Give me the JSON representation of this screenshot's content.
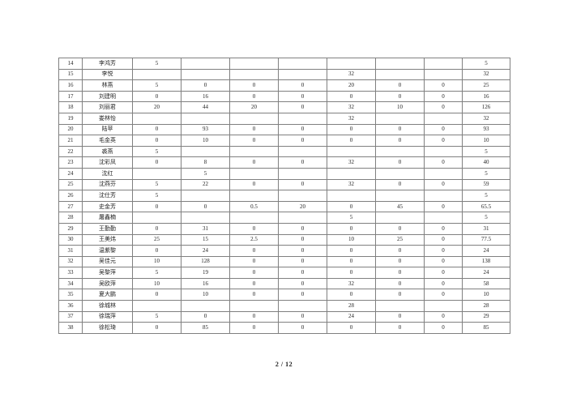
{
  "footer": {
    "page_number": "2 / 12"
  },
  "table": {
    "rows": [
      {
        "num": "14",
        "name": "李鸿芳",
        "values": [
          "5",
          "",
          "",
          "",
          "",
          "",
          ""
        ],
        "total": "5"
      },
      {
        "num": "15",
        "name": "李悦",
        "values": [
          "",
          "",
          "",
          "",
          "32",
          "",
          ""
        ],
        "total": "32"
      },
      {
        "num": "16",
        "name": "林燕",
        "values": [
          "5",
          "0",
          "0",
          "0",
          "20",
          "0",
          "0"
        ],
        "total": "25"
      },
      {
        "num": "17",
        "name": "刘建明",
        "values": [
          "0",
          "16",
          "0",
          "0",
          "0",
          "0",
          "0"
        ],
        "total": "16"
      },
      {
        "num": "18",
        "name": "刘丽君",
        "values": [
          "20",
          "44",
          "20",
          "0",
          "32",
          "10",
          "0"
        ],
        "total": "126"
      },
      {
        "num": "19",
        "name": "娄林怡",
        "values": [
          "",
          "",
          "",
          "",
          "32",
          "",
          ""
        ],
        "total": "32"
      },
      {
        "num": "20",
        "name": "陆苹",
        "values": [
          "0",
          "93",
          "0",
          "0",
          "0",
          "0",
          "0"
        ],
        "total": "93"
      },
      {
        "num": "21",
        "name": "毛金英",
        "values": [
          "0",
          "10",
          "0",
          "0",
          "0",
          "0",
          "0"
        ],
        "total": "10"
      },
      {
        "num": "22",
        "name": "裘燕",
        "values": [
          "5",
          "",
          "",
          "",
          "",
          "",
          ""
        ],
        "total": "5"
      },
      {
        "num": "23",
        "name": "沈彩凤",
        "values": [
          "0",
          "8",
          "0",
          "0",
          "32",
          "0",
          "0"
        ],
        "total": "40"
      },
      {
        "num": "24",
        "name": "沈红",
        "values": [
          "",
          "5",
          "",
          "",
          "",
          "",
          ""
        ],
        "total": "5"
      },
      {
        "num": "25",
        "name": "沈燕芬",
        "values": [
          "5",
          "22",
          "0",
          "0",
          "32",
          "0",
          "0"
        ],
        "total": "59"
      },
      {
        "num": "26",
        "name": "沈仕芳",
        "values": [
          "5",
          "",
          "",
          "",
          "",
          "",
          ""
        ],
        "total": "5"
      },
      {
        "num": "27",
        "name": "史金芳",
        "values": [
          "0",
          "0",
          "0.5",
          "20",
          "0",
          "45",
          "0"
        ],
        "total": "65.5"
      },
      {
        "num": "28",
        "name": "屠鑫楠",
        "values": [
          "",
          "",
          "",
          "",
          "5",
          "",
          ""
        ],
        "total": "5"
      },
      {
        "num": "29",
        "name": "王勤勤",
        "values": [
          "0",
          "31",
          "0",
          "0",
          "0",
          "0",
          "0"
        ],
        "total": "31"
      },
      {
        "num": "30",
        "name": "王美炜",
        "values": [
          "25",
          "15",
          "2.5",
          "0",
          "10",
          "25",
          "0"
        ],
        "total": "77.5"
      },
      {
        "num": "31",
        "name": "温紫黎",
        "values": [
          "0",
          "24",
          "0",
          "0",
          "0",
          "0",
          "0"
        ],
        "total": "24"
      },
      {
        "num": "32",
        "name": "吴佳元",
        "values": [
          "10",
          "128",
          "0",
          "0",
          "0",
          "0",
          "0"
        ],
        "total": "138"
      },
      {
        "num": "33",
        "name": "吴黎萍",
        "values": [
          "5",
          "19",
          "0",
          "0",
          "0",
          "0",
          "0"
        ],
        "total": "24"
      },
      {
        "num": "34",
        "name": "吴欧萍",
        "values": [
          "10",
          "16",
          "0",
          "0",
          "32",
          "0",
          "0"
        ],
        "total": "58"
      },
      {
        "num": "35",
        "name": "夏大鹏",
        "values": [
          "0",
          "10",
          "0",
          "0",
          "0",
          "0",
          "0"
        ],
        "total": "10"
      },
      {
        "num": "36",
        "name": "徐城林",
        "values": [
          "",
          "",
          "",
          "",
          "28",
          "",
          ""
        ],
        "total": "28"
      },
      {
        "num": "37",
        "name": "徐瑞萍",
        "values": [
          "5",
          "0",
          "0",
          "0",
          "24",
          "0",
          "0"
        ],
        "total": "29"
      },
      {
        "num": "38",
        "name": "徐松琦",
        "values": [
          "0",
          "85",
          "0",
          "0",
          "0",
          "0",
          "0"
        ],
        "total": "85"
      }
    ]
  }
}
